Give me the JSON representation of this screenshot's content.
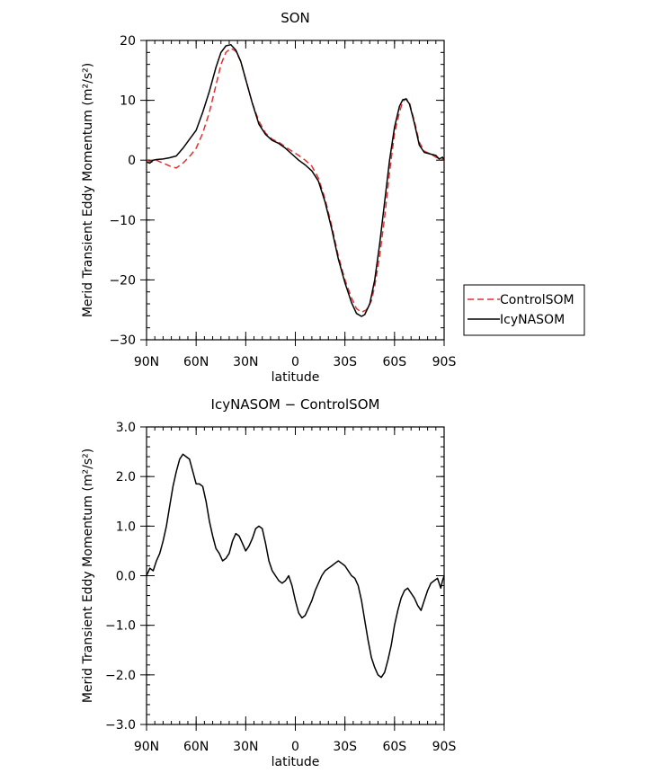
{
  "chart_data": [
    {
      "type": "line",
      "title": "SON",
      "xlabel": "latitude",
      "ylabel": "Merid Transient Eddy Momentum (m²/s²)",
      "xlim": [
        90,
        -90
      ],
      "ylim": [
        -30,
        20
      ],
      "x_ticks": [
        {
          "value": 90,
          "label": "90N"
        },
        {
          "value": 60,
          "label": "60N"
        },
        {
          "value": 30,
          "label": "30N"
        },
        {
          "value": 0,
          "label": "0"
        },
        {
          "value": -30,
          "label": "30S"
        },
        {
          "value": -60,
          "label": "60S"
        },
        {
          "value": -90,
          "label": "90S"
        }
      ],
      "y_ticks": [
        {
          "value": 20,
          "label": "20"
        },
        {
          "value": 10,
          "label": "10"
        },
        {
          "value": 0,
          "label": "0"
        },
        {
          "value": -10,
          "label": "−10"
        },
        {
          "value": -20,
          "label": "−20"
        },
        {
          "value": -30,
          "label": "−30"
        }
      ],
      "legend": {
        "placement": "right"
      },
      "series": [
        {
          "name": "ControlSOM",
          "color": "#e03030",
          "dash": "dashed",
          "points": [
            [
              90,
              0
            ],
            [
              87,
              -0.3
            ],
            [
              84,
              0
            ],
            [
              80,
              -0.5
            ],
            [
              75,
              -1.1
            ],
            [
              72,
              -1.3
            ],
            [
              68,
              -0.5
            ],
            [
              64,
              0.6
            ],
            [
              60,
              2.0
            ],
            [
              56,
              4.5
            ],
            [
              52,
              8.0
            ],
            [
              48,
              12.5
            ],
            [
              45,
              16.0
            ],
            [
              42,
              18.0
            ],
            [
              39,
              18.7
            ],
            [
              36,
              18.2
            ],
            [
              33,
              16.5
            ],
            [
              30,
              13.5
            ],
            [
              26,
              9.5
            ],
            [
              22,
              6.5
            ],
            [
              18,
              4.5
            ],
            [
              14,
              3.5
            ],
            [
              10,
              3.0
            ],
            [
              6,
              2.2
            ],
            [
              2,
              1.5
            ],
            [
              -2,
              0.8
            ],
            [
              -6,
              0
            ],
            [
              -10,
              -1.0
            ],
            [
              -14,
              -3.0
            ],
            [
              -18,
              -6.5
            ],
            [
              -22,
              -11.0
            ],
            [
              -26,
              -16.0
            ],
            [
              -30,
              -20.0
            ],
            [
              -34,
              -23.0
            ],
            [
              -37,
              -24.8
            ],
            [
              -40,
              -25.4
            ],
            [
              -43,
              -25.0
            ],
            [
              -46,
              -23.5
            ],
            [
              -48,
              -21.0
            ],
            [
              -51,
              -16.0
            ],
            [
              -54,
              -9.5
            ],
            [
              -57,
              -2.0
            ],
            [
              -60,
              4.5
            ],
            [
              -63,
              8.0
            ],
            [
              -65,
              9.8
            ],
            [
              -67,
              10.3
            ],
            [
              -69,
              9.6
            ],
            [
              -72,
              6.5
            ],
            [
              -75,
              3.0
            ],
            [
              -78,
              1.5
            ],
            [
              -82,
              1.0
            ],
            [
              -85,
              0.5
            ],
            [
              -88,
              0.2
            ],
            [
              -90,
              0
            ]
          ]
        },
        {
          "name": "IcyNASOM",
          "color": "#000000",
          "dash": "solid",
          "points": [
            [
              90,
              -0.3
            ],
            [
              88,
              -0.5
            ],
            [
              86,
              0
            ],
            [
              84,
              0.1
            ],
            [
              80,
              0.2
            ],
            [
              76,
              0.4
            ],
            [
              72,
              0.7
            ],
            [
              68,
              2.0
            ],
            [
              64,
              3.5
            ],
            [
              60,
              5.0
            ],
            [
              56,
              8.0
            ],
            [
              52,
              11.5
            ],
            [
              48,
              15.5
            ],
            [
              45,
              18.0
            ],
            [
              42,
              19.1
            ],
            [
              39,
              19.3
            ],
            [
              36,
              18.4
            ],
            [
              33,
              16.5
            ],
            [
              30,
              13.5
            ],
            [
              26,
              9.5
            ],
            [
              22,
              6.0
            ],
            [
              18,
              4.3
            ],
            [
              14,
              3.3
            ],
            [
              10,
              2.8
            ],
            [
              6,
              2.0
            ],
            [
              2,
              1.0
            ],
            [
              -2,
              0
            ],
            [
              -6,
              -0.8
            ],
            [
              -10,
              -1.8
            ],
            [
              -14,
              -3.5
            ],
            [
              -18,
              -7.0
            ],
            [
              -22,
              -11.5
            ],
            [
              -26,
              -16.5
            ],
            [
              -30,
              -20.5
            ],
            [
              -34,
              -23.8
            ],
            [
              -37,
              -25.6
            ],
            [
              -40,
              -26.1
            ],
            [
              -42,
              -25.8
            ],
            [
              -45,
              -24.0
            ],
            [
              -48,
              -20.0
            ],
            [
              -51,
              -14.0
            ],
            [
              -54,
              -7.0
            ],
            [
              -57,
              0
            ],
            [
              -60,
              5.5
            ],
            [
              -63,
              9.0
            ],
            [
              -65,
              10.1
            ],
            [
              -67,
              10.2
            ],
            [
              -69,
              9.4
            ],
            [
              -72,
              6.2
            ],
            [
              -75,
              2.5
            ],
            [
              -78,
              1.3
            ],
            [
              -82,
              1.0
            ],
            [
              -85,
              0.8
            ],
            [
              -87,
              0.2
            ],
            [
              -89,
              0.5
            ],
            [
              -90,
              0
            ]
          ]
        }
      ]
    },
    {
      "type": "line",
      "title": "IcyNASOM − ControlSOM",
      "xlabel": "latitude",
      "ylabel": "Merid Transient Eddy Momentum (m²/s²)",
      "xlim": [
        90,
        -90
      ],
      "ylim": [
        -3,
        3
      ],
      "x_ticks": [
        {
          "value": 90,
          "label": "90N"
        },
        {
          "value": 60,
          "label": "60N"
        },
        {
          "value": 30,
          "label": "30N"
        },
        {
          "value": 0,
          "label": "0"
        },
        {
          "value": -30,
          "label": "30S"
        },
        {
          "value": -60,
          "label": "60S"
        },
        {
          "value": -90,
          "label": "90S"
        }
      ],
      "y_ticks": [
        {
          "value": 3,
          "label": "3.0"
        },
        {
          "value": 2,
          "label": "2.0"
        },
        {
          "value": 1,
          "label": "1.0"
        },
        {
          "value": 0,
          "label": "0.0"
        },
        {
          "value": -1,
          "label": "−1.0"
        },
        {
          "value": -2,
          "label": "−2.0"
        },
        {
          "value": -3,
          "label": "−3.0"
        }
      ],
      "series": [
        {
          "color": "#000000",
          "dash": "solid",
          "points": [
            [
              90,
              0
            ],
            [
              88,
              0.15
            ],
            [
              86,
              0.1
            ],
            [
              84,
              0.3
            ],
            [
              82,
              0.45
            ],
            [
              80,
              0.7
            ],
            [
              78,
              1.0
            ],
            [
              76,
              1.4
            ],
            [
              74,
              1.8
            ],
            [
              72,
              2.1
            ],
            [
              70,
              2.35
            ],
            [
              68,
              2.45
            ],
            [
              66,
              2.4
            ],
            [
              64,
              2.35
            ],
            [
              62,
              2.1
            ],
            [
              60,
              1.85
            ],
            [
              58,
              1.85
            ],
            [
              56,
              1.8
            ],
            [
              54,
              1.5
            ],
            [
              52,
              1.1
            ],
            [
              50,
              0.8
            ],
            [
              48,
              0.55
            ],
            [
              46,
              0.45
            ],
            [
              44,
              0.3
            ],
            [
              42,
              0.35
            ],
            [
              40,
              0.45
            ],
            [
              38,
              0.7
            ],
            [
              36,
              0.85
            ],
            [
              34,
              0.8
            ],
            [
              32,
              0.65
            ],
            [
              30,
              0.5
            ],
            [
              28,
              0.6
            ],
            [
              26,
              0.75
            ],
            [
              24,
              0.95
            ],
            [
              22,
              1.0
            ],
            [
              20,
              0.95
            ],
            [
              18,
              0.65
            ],
            [
              16,
              0.3
            ],
            [
              14,
              0.1
            ],
            [
              12,
              0
            ],
            [
              10,
              -0.1
            ],
            [
              8,
              -0.15
            ],
            [
              6,
              -0.1
            ],
            [
              4,
              0
            ],
            [
              2,
              -0.2
            ],
            [
              0,
              -0.5
            ],
            [
              -2,
              -0.75
            ],
            [
              -4,
              -0.85
            ],
            [
              -6,
              -0.8
            ],
            [
              -8,
              -0.65
            ],
            [
              -10,
              -0.5
            ],
            [
              -12,
              -0.3
            ],
            [
              -14,
              -0.15
            ],
            [
              -16,
              0
            ],
            [
              -18,
              0.1
            ],
            [
              -20,
              0.15
            ],
            [
              -22,
              0.2
            ],
            [
              -24,
              0.25
            ],
            [
              -26,
              0.3
            ],
            [
              -28,
              0.25
            ],
            [
              -30,
              0.2
            ],
            [
              -32,
              0.1
            ],
            [
              -34,
              0
            ],
            [
              -36,
              -0.05
            ],
            [
              -38,
              -0.2
            ],
            [
              -40,
              -0.5
            ],
            [
              -42,
              -0.9
            ],
            [
              -44,
              -1.3
            ],
            [
              -46,
              -1.65
            ],
            [
              -48,
              -1.85
            ],
            [
              -50,
              -2.0
            ],
            [
              -52,
              -2.05
            ],
            [
              -54,
              -1.95
            ],
            [
              -56,
              -1.7
            ],
            [
              -58,
              -1.4
            ],
            [
              -60,
              -1.0
            ],
            [
              -62,
              -0.7
            ],
            [
              -64,
              -0.45
            ],
            [
              -66,
              -0.3
            ],
            [
              -68,
              -0.25
            ],
            [
              -70,
              -0.35
            ],
            [
              -72,
              -0.45
            ],
            [
              -74,
              -0.6
            ],
            [
              -76,
              -0.7
            ],
            [
              -78,
              -0.5
            ],
            [
              -80,
              -0.3
            ],
            [
              -82,
              -0.15
            ],
            [
              -84,
              -0.1
            ],
            [
              -86,
              -0.05
            ],
            [
              -88,
              -0.25
            ],
            [
              -89,
              -0.1
            ],
            [
              -90,
              0
            ]
          ]
        }
      ]
    }
  ]
}
